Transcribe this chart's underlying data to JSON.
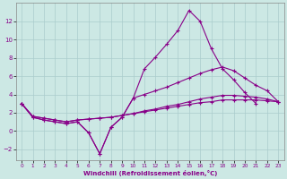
{
  "xlabel": "Windchill (Refroidissement éolien,°C)",
  "bg_color": "#cce8e4",
  "grid_color": "#aacccc",
  "line_color": "#880088",
  "xlim": [
    -0.5,
    23.5
  ],
  "ylim": [
    -3.2,
    14.0
  ],
  "xticks": [
    0,
    1,
    2,
    3,
    4,
    5,
    6,
    7,
    8,
    9,
    10,
    11,
    12,
    13,
    14,
    15,
    16,
    17,
    18,
    19,
    20,
    21,
    22,
    23
  ],
  "yticks": [
    -2,
    0,
    2,
    4,
    6,
    8,
    10,
    12
  ],
  "line1_x": [
    0,
    1,
    2,
    3,
    4,
    5,
    6,
    7,
    8,
    9,
    10,
    11,
    12,
    13,
    14,
    15,
    16,
    17,
    18,
    19,
    20,
    21
  ],
  "line1_y": [
    3.0,
    1.5,
    1.2,
    1.0,
    0.8,
    1.0,
    -0.2,
    -2.5,
    0.4,
    1.5,
    3.6,
    6.8,
    8.1,
    9.5,
    11.0,
    13.2,
    12.0,
    9.0,
    6.8,
    5.6,
    4.2,
    3.0
  ],
  "line2_x": [
    0,
    1,
    2,
    3,
    4,
    5,
    6,
    7,
    8,
    9,
    10,
    11,
    12,
    13,
    14,
    15,
    16,
    17,
    18,
    19,
    20,
    21,
    22,
    23
  ],
  "line2_y": [
    3.0,
    1.5,
    1.2,
    1.0,
    0.8,
    1.0,
    -0.2,
    -2.5,
    0.4,
    1.5,
    3.6,
    4.0,
    4.4,
    4.8,
    5.3,
    5.8,
    6.3,
    6.7,
    7.0,
    6.6,
    5.8,
    5.0,
    4.4,
    3.2
  ],
  "line3_x": [
    0,
    1,
    2,
    3,
    4,
    5,
    6,
    7,
    8,
    9,
    10,
    11,
    12,
    13,
    14,
    15,
    16,
    17,
    18,
    19,
    20,
    21,
    22,
    23
  ],
  "line3_y": [
    3.0,
    1.6,
    1.4,
    1.2,
    1.0,
    1.2,
    1.3,
    1.4,
    1.5,
    1.7,
    1.9,
    2.1,
    2.3,
    2.5,
    2.7,
    2.9,
    3.1,
    3.2,
    3.4,
    3.4,
    3.4,
    3.4,
    3.3,
    3.2
  ],
  "line4_x": [
    0,
    1,
    2,
    3,
    4,
    5,
    6,
    7,
    8,
    9,
    10,
    11,
    12,
    13,
    14,
    15,
    16,
    17,
    18,
    19,
    20,
    21,
    22,
    23
  ],
  "line4_y": [
    3.0,
    1.6,
    1.4,
    1.2,
    1.0,
    1.2,
    1.3,
    1.4,
    1.5,
    1.7,
    1.9,
    2.2,
    2.4,
    2.7,
    2.9,
    3.2,
    3.5,
    3.7,
    3.9,
    3.9,
    3.8,
    3.7,
    3.5,
    3.2
  ]
}
